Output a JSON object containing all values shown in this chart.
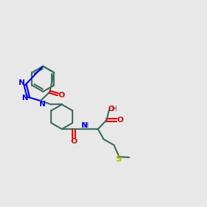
{
  "bg_color": "#e8e8e8",
  "bond_color": "#3d6b5e",
  "N_color": "#0000ee",
  "O_color": "#dd0000",
  "S_color": "#bbbb00",
  "H_color": "#666666",
  "line_width": 1.6,
  "figsize": [
    3.0,
    3.0
  ],
  "dpi": 100,
  "xlim": [
    0,
    10
  ],
  "ylim": [
    0,
    10
  ]
}
